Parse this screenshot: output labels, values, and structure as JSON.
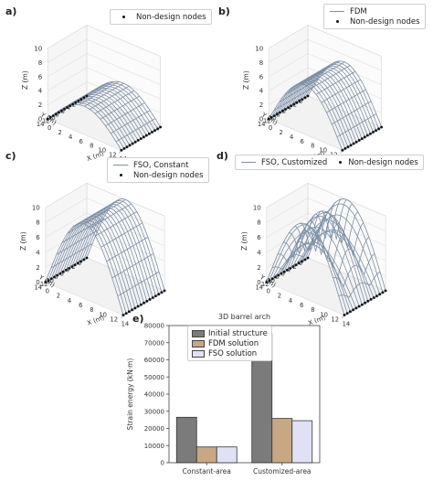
{
  "panels": [
    {
      "label": "a)",
      "legend": [
        {
          "kind": "dot",
          "text": "Non-design nodes"
        }
      ],
      "shape": "arch",
      "height": 4,
      "design": false
    },
    {
      "label": "b)",
      "legend": [
        {
          "kind": "line",
          "text": "FDM"
        },
        {
          "kind": "dot",
          "text": "Non-design nodes"
        }
      ],
      "shape": "arch",
      "height": 7,
      "design": true
    },
    {
      "label": "c)",
      "legend": [
        {
          "kind": "line",
          "text": "FSO, Constant"
        },
        {
          "kind": "dot",
          "text": "Non-design nodes"
        }
      ],
      "shape": "arch",
      "height": 10,
      "design": true
    },
    {
      "label": "d)",
      "legend": [
        {
          "kind": "line",
          "text": "FSO, Customized"
        },
        {
          "kind": "dot",
          "text": "Non-design nodes"
        }
      ],
      "shape": "wavy",
      "height": 10,
      "design": true
    }
  ],
  "axes3d": {
    "zlabel": "Z (m)",
    "ylabel": "Y (m)",
    "xlabel": "X (m)",
    "zticks": [
      "0",
      "2",
      "4",
      "6",
      "8",
      "10"
    ],
    "yticks": [
      "14",
      "12",
      "10",
      "8",
      "6",
      "4",
      "2",
      "0"
    ],
    "xticks": [
      "0",
      "2",
      "4",
      "6",
      "8",
      "10",
      "12",
      "14"
    ]
  },
  "colors": {
    "mesh": "#7d8fa6",
    "node": "#111111",
    "grid": "#d8d8d8"
  },
  "bar_panel_label": "e)",
  "chart_data": {
    "type": "bar",
    "title": "3D barrel arch",
    "categories": [
      "Constant-area",
      "Customized-area"
    ],
    "ylabel": "Strain energy (kN·m)",
    "ylim": [
      0,
      80000
    ],
    "yticks": [
      0,
      10000,
      20000,
      30000,
      40000,
      50000,
      60000,
      70000,
      80000
    ],
    "legend_position": "top-left",
    "series": [
      {
        "name": "Initial structure",
        "color": "#7b7b7b",
        "values": [
          26500,
          75000
        ]
      },
      {
        "name": "FDM solution",
        "color": "#c7a883",
        "values": [
          9200,
          25800
        ]
      },
      {
        "name": "FSO solution",
        "color": "#e1e1f5",
        "values": [
          9200,
          24500
        ]
      }
    ]
  }
}
